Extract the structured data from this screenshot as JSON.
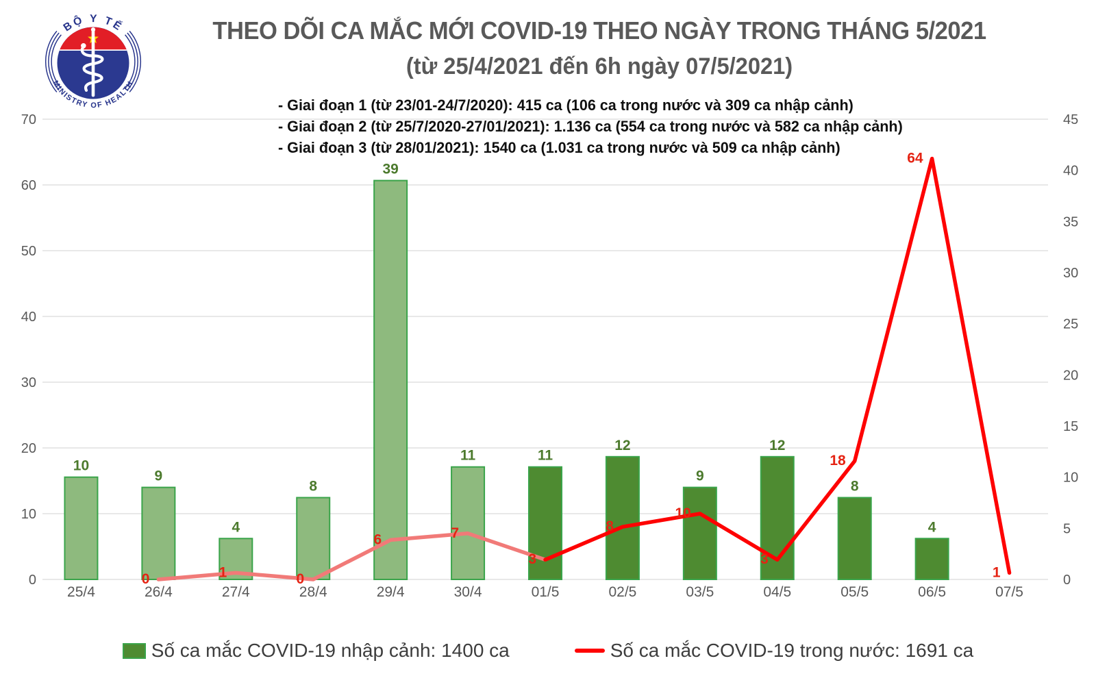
{
  "logo": {
    "top_text": "BỘ Y TẾ",
    "bottom_text": "MINISTRY OF HEALTH",
    "colors": {
      "blue": "#2B3990",
      "red": "#E21E26",
      "star_yellow": "#FFD800",
      "text_blue": "#27348B"
    }
  },
  "header": {
    "title_line1": "THEO DÕI CA MẮC MỚI COVID-19 THEO NGÀY TRONG THÁNG 5/2021",
    "title_line2": "(từ 25/4/2021 đến 6h ngày 07/5/2021)",
    "annotations": [
      "- Giai đoạn 1 (từ 23/01-24/7/2020): 415 ca (106 ca trong nước và 309 ca nhập cảnh)",
      "- Giai đoạn 2 (từ 25/7/2020-27/01/2021): 1.136 ca (554 ca trong nước và 582 ca nhập cảnh)",
      "- Giai đoạn 3 (từ 28/01/2021): 1540 ca (1.031 ca trong nước và 509 ca nhập cảnh)"
    ]
  },
  "chart_data": {
    "type": "combo-bar-line",
    "categories": [
      "25/4",
      "26/4",
      "27/4",
      "28/4",
      "29/4",
      "30/4",
      "01/5",
      "02/5",
      "03/5",
      "04/5",
      "05/5",
      "06/5",
      "07/5"
    ],
    "series": [
      {
        "name": "Số ca mắc COVID-19 nhập cảnh",
        "type": "bar",
        "axis": "right",
        "values": [
          10,
          9,
          4,
          8,
          39,
          11,
          11,
          12,
          9,
          12,
          8,
          4,
          null
        ],
        "styles": [
          "light",
          "light",
          "light",
          "light",
          "light",
          "light",
          "dark",
          "dark",
          "dark",
          "dark",
          "dark",
          "dark",
          null
        ]
      },
      {
        "name": "Số ca mắc COVID-19 trong nước",
        "type": "line",
        "axis": "left",
        "values": [
          null,
          0,
          1,
          0,
          6,
          7,
          3,
          8,
          10,
          3,
          18,
          64,
          1
        ],
        "segments": [
          {
            "from": 1,
            "to": 6,
            "color": "#F17A78"
          },
          {
            "from": 6,
            "to": 12,
            "color": "#FE0202"
          }
        ]
      }
    ],
    "left_axis": {
      "min": 0,
      "max": 70,
      "step": 10
    },
    "right_axis": {
      "min": 0,
      "max": 45,
      "step": 5
    },
    "grid": true,
    "legend_position": "bottom",
    "colors": {
      "bar_light_fill": "#8EBA7E",
      "bar_light_stroke": "#3AA44A",
      "bar_dark_fill": "#4E8B31",
      "bar_dark_stroke": "#3AA44A",
      "bar_label": "#4C7A2D",
      "line_pink": "#F17A78",
      "line_red": "#FE0202",
      "line_label": "#E52313",
      "axis_label": "#595959",
      "grid_line": "#D9D9D9"
    }
  },
  "legend": {
    "items": [
      {
        "label": "Số ca mắc COVID-19 nhập cảnh: 1400 ca",
        "swatch": "bar"
      },
      {
        "label": "Số ca mắc COVID-19 trong nước: 1691 ca",
        "swatch": "line"
      }
    ]
  }
}
